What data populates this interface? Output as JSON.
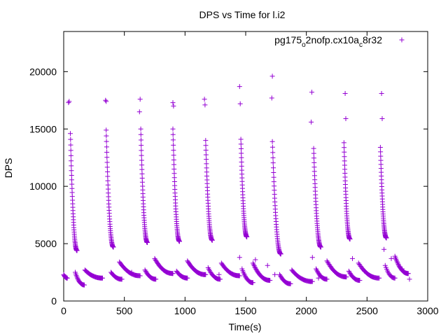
{
  "chart_data": {
    "type": "scatter",
    "title": "DPS vs Time for l.i2",
    "xlabel": "Time(s)",
    "ylabel": "DPS",
    "xlim": [
      0,
      3000
    ],
    "ylim": [
      0,
      23500
    ],
    "xticks": [
      0,
      500,
      1000,
      1500,
      2000,
      2500,
      3000
    ],
    "yticks": [
      0,
      5000,
      10000,
      15000,
      20000
    ],
    "grid": false,
    "legend_position": "top-right",
    "marker": "plus",
    "color": "#9400d3",
    "series": [
      {
        "name": "pg175o2nofp.cx10ac8r32",
        "legend_label": {
          "a": "pg175",
          "b": "o",
          "c": "2nofp.cx10a",
          "d": "c",
          "e": "8r32"
        },
        "segments": [
          {
            "x0": 0,
            "x1": 30,
            "y0": 2300,
            "y1": 2000,
            "n": 10
          },
          {
            "x0": 55,
            "x1": 110,
            "y0": 14600,
            "y1": 4400,
            "n": 45
          },
          {
            "x0": 95,
            "x1": 170,
            "y0": 2500,
            "y1": 1400,
            "n": 18
          },
          {
            "x0": 175,
            "x1": 320,
            "y0": 2700,
            "y1": 2000,
            "n": 30
          },
          {
            "x0": 350,
            "x1": 410,
            "y0": 14900,
            "y1": 4700,
            "n": 45
          },
          {
            "x0": 390,
            "x1": 480,
            "y0": 2500,
            "y1": 1900,
            "n": 18
          },
          {
            "x0": 460,
            "x1": 630,
            "y0": 3400,
            "y1": 2200,
            "n": 32
          },
          {
            "x0": 635,
            "x1": 690,
            "y0": 15000,
            "y1": 5100,
            "n": 45
          },
          {
            "x0": 670,
            "x1": 760,
            "y0": 2700,
            "y1": 1900,
            "n": 18
          },
          {
            "x0": 750,
            "x1": 900,
            "y0": 3700,
            "y1": 2400,
            "n": 30
          },
          {
            "x0": 900,
            "x1": 955,
            "y0": 15000,
            "y1": 5200,
            "n": 45
          },
          {
            "x0": 930,
            "x1": 1020,
            "y0": 2600,
            "y1": 2000,
            "n": 18
          },
          {
            "x0": 1020,
            "x1": 1170,
            "y0": 3500,
            "y1": 2300,
            "n": 30
          },
          {
            "x0": 1170,
            "x1": 1225,
            "y0": 14000,
            "y1": 5300,
            "n": 45
          },
          {
            "x0": 1190,
            "x1": 1290,
            "y0": 2900,
            "y1": 1900,
            "n": 18
          },
          {
            "x0": 1300,
            "x1": 1450,
            "y0": 3300,
            "y1": 2200,
            "n": 30
          },
          {
            "x0": 1460,
            "x1": 1510,
            "y0": 14100,
            "y1": 5600,
            "n": 45
          },
          {
            "x0": 1470,
            "x1": 1560,
            "y0": 2800,
            "y1": 1600,
            "n": 18
          },
          {
            "x0": 1560,
            "x1": 1700,
            "y0": 3300,
            "y1": 1800,
            "n": 30
          },
          {
            "x0": 1720,
            "x1": 1790,
            "y0": 13900,
            "y1": 4100,
            "n": 45
          },
          {
            "x0": 1780,
            "x1": 1870,
            "y0": 2300,
            "y1": 1500,
            "n": 18
          },
          {
            "x0": 1880,
            "x1": 2050,
            "y0": 2700,
            "y1": 1700,
            "n": 32
          },
          {
            "x0": 2060,
            "x1": 2120,
            "y0": 13300,
            "y1": 4700,
            "n": 45
          },
          {
            "x0": 2080,
            "x1": 2170,
            "y0": 2800,
            "y1": 1900,
            "n": 18
          },
          {
            "x0": 2170,
            "x1": 2330,
            "y0": 3500,
            "y1": 2100,
            "n": 30
          },
          {
            "x0": 2310,
            "x1": 2360,
            "y0": 13800,
            "y1": 5400,
            "n": 45
          },
          {
            "x0": 2350,
            "x1": 2440,
            "y0": 2600,
            "y1": 1800,
            "n": 18
          },
          {
            "x0": 2430,
            "x1": 2600,
            "y0": 3300,
            "y1": 2000,
            "n": 30
          },
          {
            "x0": 2610,
            "x1": 2660,
            "y0": 13400,
            "y1": 5500,
            "n": 45
          },
          {
            "x0": 2650,
            "x1": 2730,
            "y0": 3100,
            "y1": 2000,
            "n": 14
          },
          {
            "x0": 2730,
            "x1": 2840,
            "y0": 3900,
            "y1": 2400,
            "n": 26
          }
        ],
        "points": [
          [
            40,
            17300
          ],
          [
            45,
            17400
          ],
          [
            345,
            17500
          ],
          [
            350,
            17400
          ],
          [
            630,
            17600
          ],
          [
            625,
            16500
          ],
          [
            900,
            17300
          ],
          [
            905,
            17000
          ],
          [
            1160,
            17600
          ],
          [
            1165,
            17100
          ],
          [
            1450,
            18700
          ],
          [
            1455,
            17200
          ],
          [
            1720,
            19600
          ],
          [
            1715,
            17700
          ],
          [
            2045,
            18200
          ],
          [
            2040,
            15600
          ],
          [
            2320,
            18100
          ],
          [
            2325,
            15900
          ],
          [
            2620,
            18100
          ],
          [
            2625,
            15900
          ],
          [
            2640,
            4500
          ],
          [
            1450,
            3800
          ],
          [
            1680,
            3100
          ],
          [
            2050,
            3800
          ],
          [
            2380,
            3700
          ],
          [
            2700,
            3700
          ],
          [
            1740,
            2300
          ],
          [
            1580,
            3600
          ],
          [
            2850,
            1900
          ],
          [
            2790,
            2800
          ],
          [
            2100,
            2000
          ],
          [
            1280,
            2300
          ],
          [
            2480,
            2600
          ],
          [
            560,
            2500
          ]
        ]
      }
    ]
  }
}
